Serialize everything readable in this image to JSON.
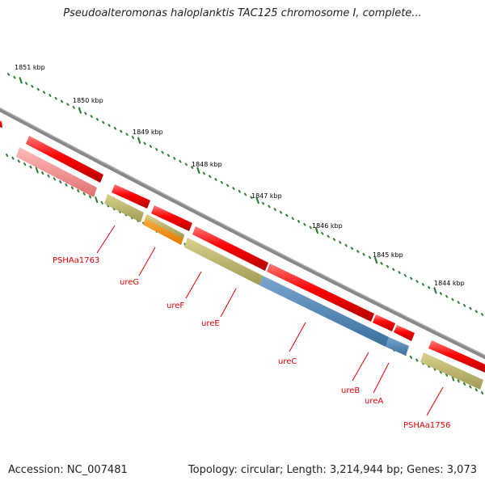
{
  "title": "Pseudoalteromonas haloplanktis TAC125 chromosome I, complete...",
  "footer": {
    "accession": "Accession: NC_007481",
    "topology": "Topology: circular; Length: 3,214,944 bp; Genes: 3,073"
  },
  "scale_labels": [
    "1851 kbp",
    "1850 kbp",
    "1849 kbp",
    "1848 kbp",
    "1847 kbp",
    "1846 kbp",
    "1845 kbp",
    "1844 kbp"
  ],
  "gene_labels": [
    "PSHAa1763",
    "ureG",
    "ureF",
    "ureE",
    "ureC",
    "ureB",
    "ureA",
    "PSHAa1756"
  ],
  "colors": {
    "backbone": "#808080",
    "cds_red": "#ff0000",
    "pseudo_pink": "#f08080",
    "gene_olive": "#bdb76b",
    "gene_orange": "#ff8c00",
    "gene_steelblue": "#4682b4",
    "tick_green": "#2e7d32",
    "label_red": "#e00000"
  }
}
